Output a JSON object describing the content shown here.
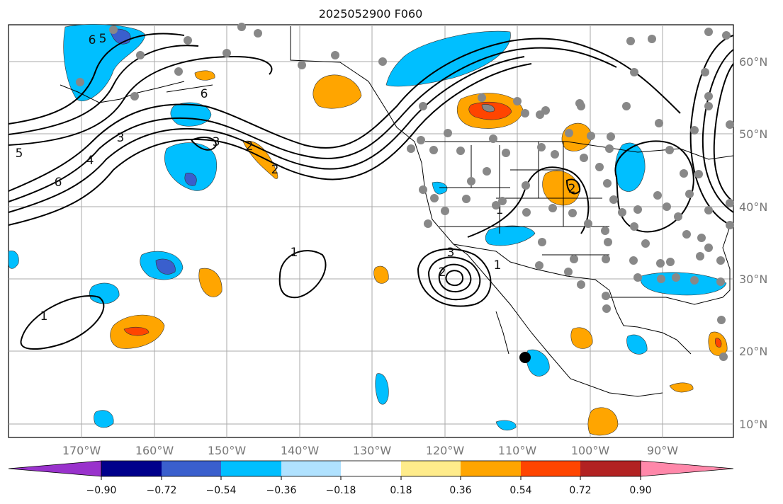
{
  "title": "2025052900 F060",
  "lon_labels": [
    "170°W",
    "160°W",
    "150°W",
    "140°W",
    "130°W",
    "120°W",
    "110°W",
    "100°W",
    "90°W"
  ],
  "lat_labels": [
    "60°N",
    "50°N",
    "40°N",
    "30°N",
    "20°N",
    "10°N"
  ],
  "colorbar": {
    "colors": [
      "#9932cc",
      "#00008b",
      "#3a5fcd",
      "#00bfff",
      "#b0e2ff",
      "#ffffff",
      "#ffec8b",
      "#ffa500",
      "#ff4500",
      "#b22222",
      "#ff88aa"
    ],
    "tick_labels": [
      "−0.90",
      "−0.72",
      "−0.54",
      "−0.36",
      "−0.18",
      "0.18",
      "0.36",
      "0.54",
      "0.72",
      "0.90"
    ]
  },
  "contour_labels": [
    "6",
    "5",
    "6",
    "3",
    "4",
    "5",
    "6",
    "3",
    "2",
    "2",
    "1",
    "1",
    "3",
    "2",
    "1",
    "2",
    "1"
  ],
  "colors": {
    "ocean_bg": "#ffffff",
    "grid": "#aaaaaa",
    "coast": "#000000",
    "station": "#888888"
  },
  "legend": {
    "symbols": [
      "gray-dot-station",
      "black-dot"
    ]
  }
}
